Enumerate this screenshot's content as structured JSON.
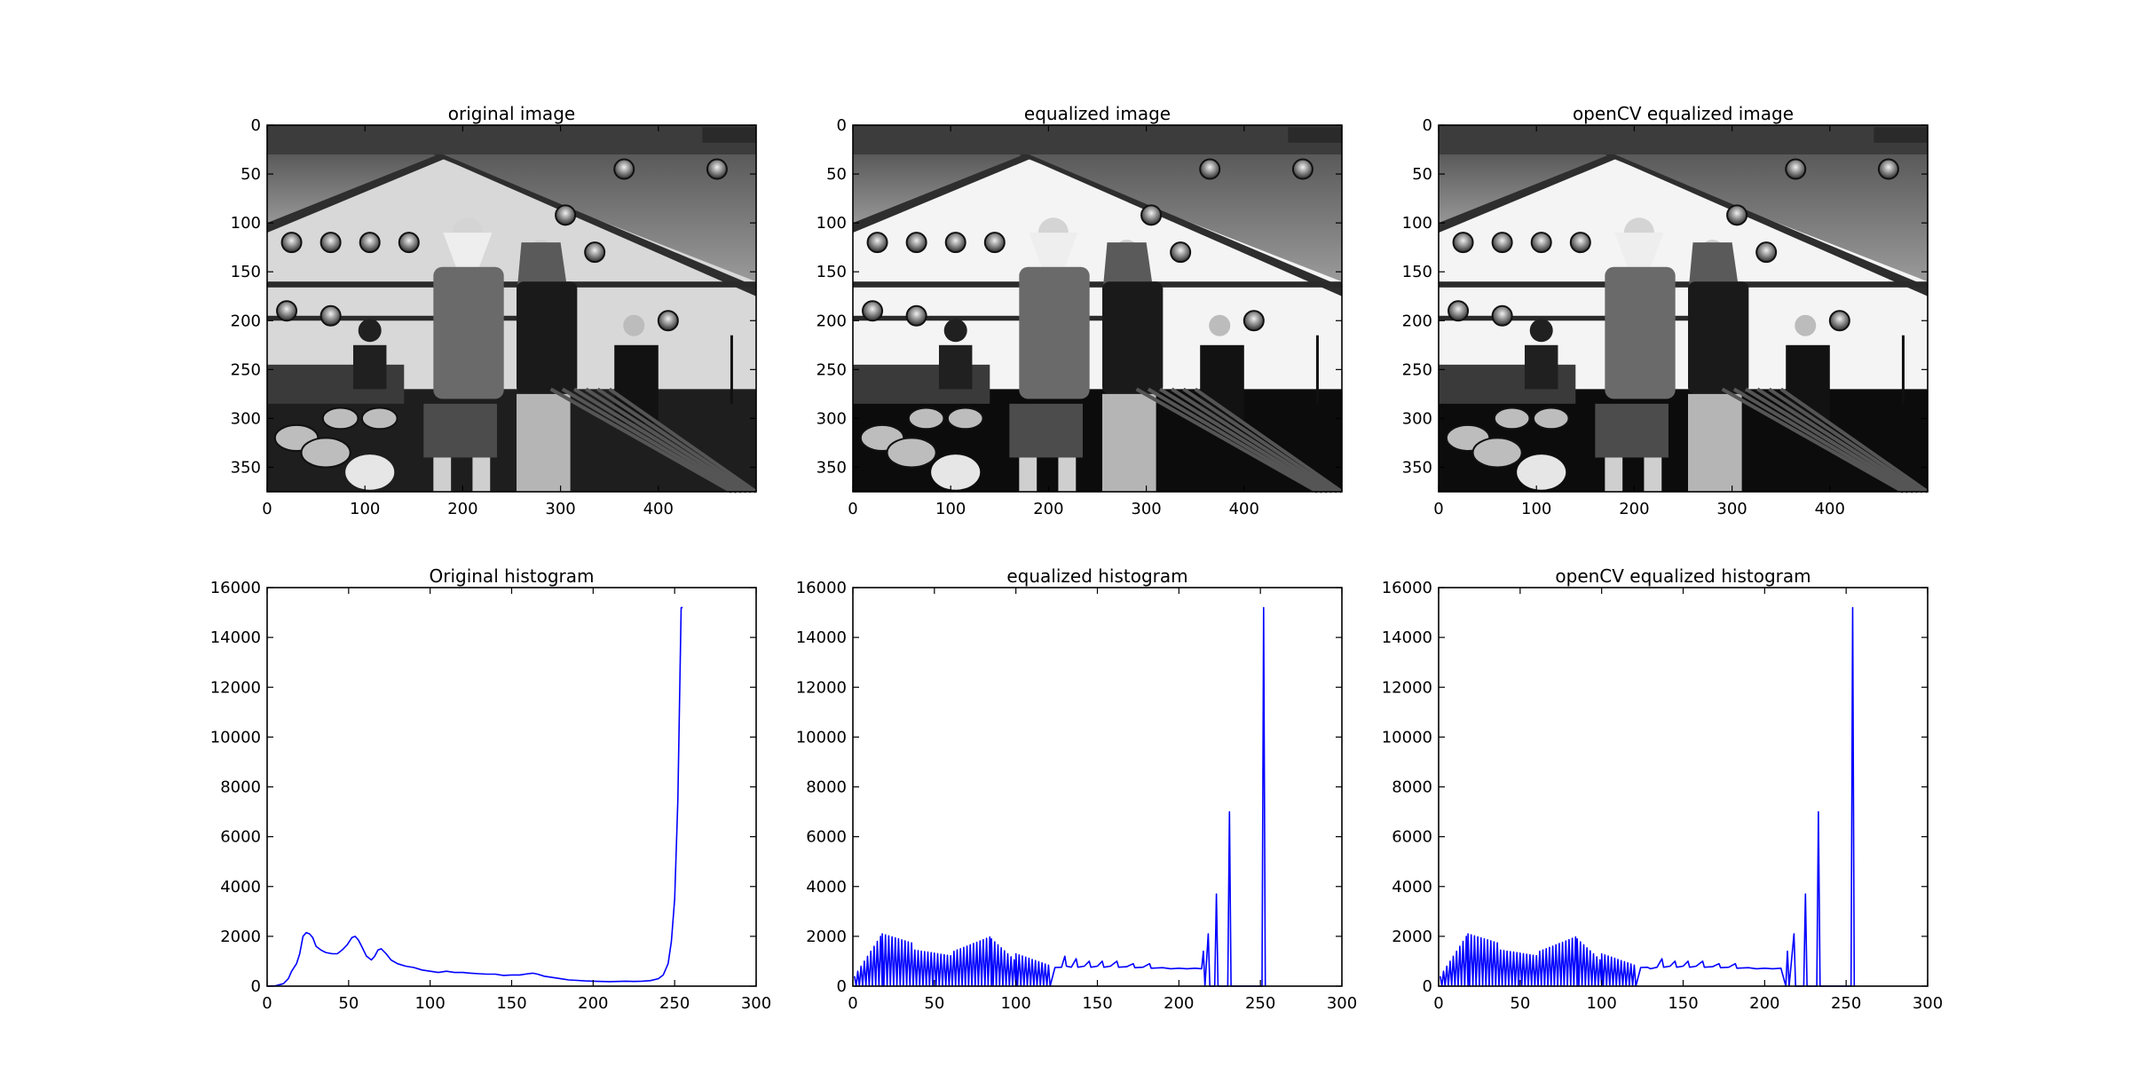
{
  "chart_data": [
    {
      "type": "image",
      "title": "original image",
      "variant": "original",
      "xticks": [
        0,
        100,
        200,
        300,
        400
      ],
      "yticks": [
        0,
        50,
        100,
        150,
        200,
        250,
        300,
        350
      ],
      "xlim": [
        0,
        500
      ],
      "ylim": [
        375,
        0
      ],
      "content": "grayscale concert stage photo: tent roof, stage lights, two performers standing, drum kit, staircase railing"
    },
    {
      "type": "image",
      "title": "equalized image",
      "variant": "equalized",
      "xticks": [
        0,
        100,
        200,
        300,
        400
      ],
      "yticks": [
        0,
        50,
        100,
        150,
        200,
        250,
        300,
        350
      ],
      "xlim": [
        0,
        500
      ],
      "ylim": [
        375,
        0
      ],
      "content": "same photo after histogram equalization, higher contrast"
    },
    {
      "type": "image",
      "title": "openCV equalized image",
      "variant": "equalized",
      "xticks": [
        0,
        100,
        200,
        300,
        400
      ],
      "yticks": [
        0,
        50,
        100,
        150,
        200,
        250,
        300,
        350
      ],
      "xlim": [
        0,
        500
      ],
      "ylim": [
        375,
        0
      ],
      "content": "same photo after openCV histogram equalization, higher contrast"
    },
    {
      "type": "line",
      "title": "Original histogram",
      "line_color": "#0000ff",
      "xlim": [
        0,
        300
      ],
      "ylim": [
        0,
        16000
      ],
      "xticks": [
        0,
        50,
        100,
        150,
        200,
        250,
        300
      ],
      "yticks": [
        0,
        2000,
        4000,
        6000,
        8000,
        10000,
        12000,
        14000,
        16000
      ],
      "points": [
        [
          0,
          0
        ],
        [
          5,
          10
        ],
        [
          10,
          100
        ],
        [
          13,
          300
        ],
        [
          15,
          600
        ],
        [
          18,
          900
        ],
        [
          20,
          1300
        ],
        [
          22,
          2000
        ],
        [
          24,
          2150
        ],
        [
          26,
          2100
        ],
        [
          28,
          1950
        ],
        [
          30,
          1600
        ],
        [
          33,
          1450
        ],
        [
          36,
          1350
        ],
        [
          40,
          1300
        ],
        [
          43,
          1300
        ],
        [
          46,
          1450
        ],
        [
          49,
          1650
        ],
        [
          52,
          1950
        ],
        [
          54,
          2000
        ],
        [
          56,
          1850
        ],
        [
          58,
          1600
        ],
        [
          61,
          1200
        ],
        [
          64,
          1050
        ],
        [
          66,
          1200
        ],
        [
          68,
          1450
        ],
        [
          70,
          1500
        ],
        [
          73,
          1300
        ],
        [
          76,
          1050
        ],
        [
          80,
          900
        ],
        [
          85,
          800
        ],
        [
          90,
          750
        ],
        [
          95,
          650
        ],
        [
          100,
          600
        ],
        [
          105,
          550
        ],
        [
          110,
          600
        ],
        [
          115,
          550
        ],
        [
          120,
          550
        ],
        [
          125,
          520
        ],
        [
          130,
          500
        ],
        [
          135,
          480
        ],
        [
          140,
          480
        ],
        [
          145,
          430
        ],
        [
          150,
          450
        ],
        [
          155,
          450
        ],
        [
          160,
          500
        ],
        [
          163,
          520
        ],
        [
          166,
          480
        ],
        [
          170,
          400
        ],
        [
          175,
          350
        ],
        [
          180,
          300
        ],
        [
          185,
          250
        ],
        [
          190,
          230
        ],
        [
          195,
          210
        ],
        [
          200,
          200
        ],
        [
          205,
          190
        ],
        [
          210,
          180
        ],
        [
          215,
          190
        ],
        [
          220,
          200
        ],
        [
          225,
          190
        ],
        [
          230,
          200
        ],
        [
          235,
          220
        ],
        [
          240,
          300
        ],
        [
          243,
          450
        ],
        [
          246,
          900
        ],
        [
          248,
          1800
        ],
        [
          250,
          3500
        ],
        [
          252,
          7500
        ],
        [
          254,
          15200
        ],
        [
          255,
          15200
        ]
      ]
    },
    {
      "type": "line",
      "title": "equalized histogram",
      "line_color": "#0000ff",
      "xlim": [
        0,
        300
      ],
      "ylim": [
        0,
        16000
      ],
      "xticks": [
        0,
        50,
        100,
        150,
        200,
        250,
        300
      ],
      "yticks": [
        0,
        2000,
        4000,
        6000,
        8000,
        10000,
        12000,
        14000,
        16000
      ],
      "comb": [
        {
          "x0": 1,
          "x1": 18,
          "peak_start": 400,
          "peak_end": 2100
        },
        {
          "x0": 18,
          "x1": 38,
          "peak_start": 2100,
          "peak_end": 1700
        },
        {
          "x0": 38,
          "x1": 62,
          "peak_start": 1450,
          "peak_end": 1200
        },
        {
          "x0": 62,
          "x1": 85,
          "peak_start": 1400,
          "peak_end": 2000
        },
        {
          "x0": 85,
          "x1": 100,
          "peak_start": 1900,
          "peak_end": 1000
        },
        {
          "x0": 100,
          "x1": 122,
          "peak_start": 1300,
          "peak_end": 800
        }
      ],
      "points": [
        [
          124,
          750
        ],
        [
          128,
          760
        ],
        [
          130,
          1200
        ],
        [
          131,
          800
        ],
        [
          134,
          760
        ],
        [
          137,
          1100
        ],
        [
          138,
          760
        ],
        [
          142,
          800
        ],
        [
          145,
          1000
        ],
        [
          146,
          760
        ],
        [
          150,
          800
        ],
        [
          153,
          1000
        ],
        [
          154,
          760
        ],
        [
          158,
          800
        ],
        [
          162,
          1000
        ],
        [
          163,
          760
        ],
        [
          168,
          780
        ],
        [
          172,
          900
        ],
        [
          173,
          740
        ],
        [
          178,
          760
        ],
        [
          182,
          900
        ],
        [
          183,
          720
        ],
        [
          190,
          740
        ],
        [
          195,
          700
        ],
        [
          200,
          720
        ],
        [
          205,
          700
        ],
        [
          210,
          720
        ],
        [
          214,
          700
        ],
        [
          215,
          1400
        ],
        [
          216,
          0
        ],
        [
          218,
          2100
        ],
        [
          219,
          0
        ],
        [
          222,
          0
        ],
        [
          223,
          3700
        ],
        [
          224,
          0
        ],
        [
          230,
          0
        ],
        [
          231,
          7000
        ],
        [
          232,
          0
        ],
        [
          251,
          0
        ],
        [
          252,
          15200
        ],
        [
          253,
          0
        ]
      ]
    },
    {
      "type": "line",
      "title": "openCV equalized histogram",
      "line_color": "#0000ff",
      "xlim": [
        0,
        300
      ],
      "ylim": [
        0,
        16000
      ],
      "xticks": [
        0,
        50,
        100,
        150,
        200,
        250,
        300
      ],
      "yticks": [
        0,
        2000,
        4000,
        6000,
        8000,
        10000,
        12000,
        14000,
        16000
      ],
      "comb": [
        {
          "x0": 1,
          "x1": 18,
          "peak_start": 400,
          "peak_end": 2100
        },
        {
          "x0": 18,
          "x1": 38,
          "peak_start": 2100,
          "peak_end": 1700
        },
        {
          "x0": 38,
          "x1": 62,
          "peak_start": 1450,
          "peak_end": 1200
        },
        {
          "x0": 62,
          "x1": 85,
          "peak_start": 1400,
          "peak_end": 2000
        },
        {
          "x0": 85,
          "x1": 100,
          "peak_start": 1900,
          "peak_end": 1000
        },
        {
          "x0": 100,
          "x1": 122,
          "peak_start": 1300,
          "peak_end": 800
        }
      ],
      "points": [
        [
          124,
          750
        ],
        [
          128,
          760
        ],
        [
          130,
          700
        ],
        [
          134,
          760
        ],
        [
          137,
          1100
        ],
        [
          138,
          760
        ],
        [
          142,
          800
        ],
        [
          145,
          1000
        ],
        [
          146,
          760
        ],
        [
          150,
          800
        ],
        [
          153,
          1000
        ],
        [
          154,
          760
        ],
        [
          158,
          800
        ],
        [
          162,
          1000
        ],
        [
          163,
          760
        ],
        [
          168,
          780
        ],
        [
          172,
          900
        ],
        [
          173,
          740
        ],
        [
          178,
          760
        ],
        [
          182,
          900
        ],
        [
          183,
          720
        ],
        [
          190,
          740
        ],
        [
          195,
          700
        ],
        [
          200,
          720
        ],
        [
          205,
          700
        ],
        [
          210,
          720
        ],
        [
          213,
          0
        ],
        [
          214,
          1400
        ],
        [
          215,
          0
        ],
        [
          218,
          2100
        ],
        [
          219,
          0
        ],
        [
          224,
          0
        ],
        [
          225,
          3700
        ],
        [
          226,
          0
        ],
        [
          232,
          0
        ],
        [
          233,
          7000
        ],
        [
          234,
          0
        ],
        [
          253,
          0
        ],
        [
          254,
          15200
        ],
        [
          255,
          0
        ]
      ]
    }
  ]
}
